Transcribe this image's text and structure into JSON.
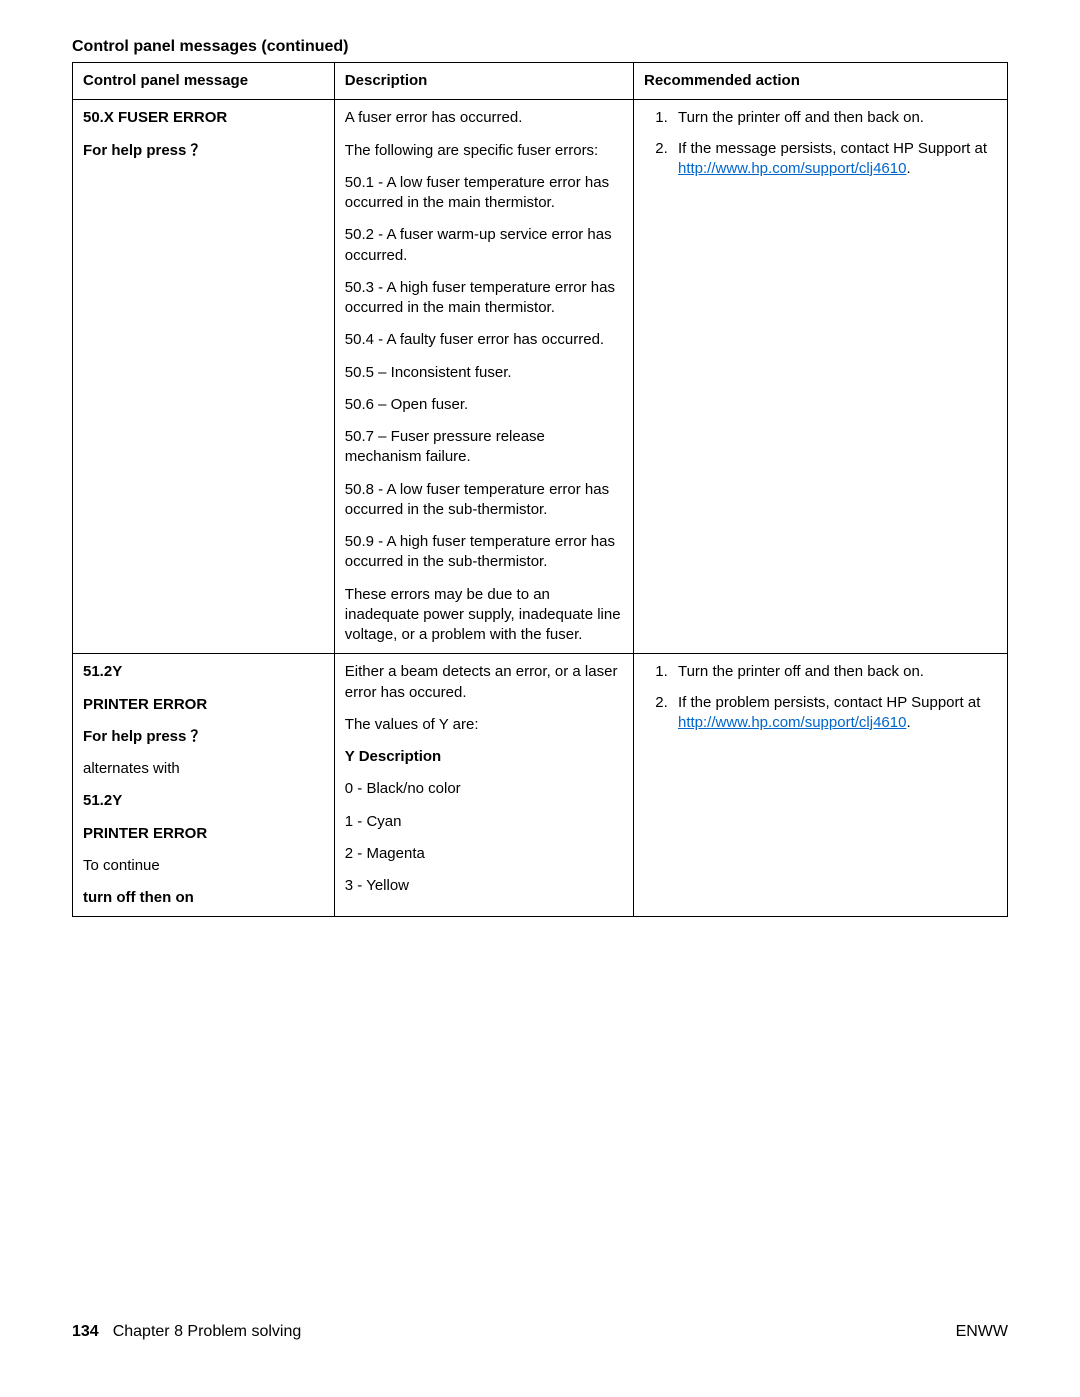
{
  "table_title": "Control panel messages (continued)",
  "headers": {
    "col1": "Control panel message",
    "col2": "Description",
    "col3": "Recommended action"
  },
  "row1": {
    "msg_line1": "50.X FUSER ERROR",
    "msg_line2": "For help press ？",
    "desc": {
      "p1": "A fuser error has occurred.",
      "p2": "The following are specific fuser errors:",
      "p3": "50.1 - A low fuser temperature error has occurred in the main thermistor.",
      "p4": "50.2 - A fuser warm-up service error has occurred.",
      "p5": "50.3 - A high fuser temperature error has occurred in the main thermistor.",
      "p6": "50.4 - A faulty fuser error has occurred.",
      "p7": "50.5 – Inconsistent fuser.",
      "p8": "50.6 – Open fuser.",
      "p9": "50.7 – Fuser pressure release mechanism failure.",
      "p10": "50.8 - A low fuser temperature error has occurred in the sub-thermistor.",
      "p11": "50.9 - A high fuser temperature error has occurred in the sub-thermistor.",
      "p12": "These errors may be due to an inadequate power supply, inadequate line voltage, or a problem with the fuser."
    },
    "action": {
      "a1": "Turn the printer off and then back on.",
      "a2_pre": "If the message persists, contact HP Support at ",
      "a2_link": "http://www.hp.com/support/clj4610",
      "a2_post": "."
    }
  },
  "row2": {
    "msg": {
      "l1": "51.2Y",
      "l2": "PRINTER ERROR",
      "l3": "For help press ？",
      "l4": "alternates with",
      "l5": "51.2Y",
      "l6": "PRINTER ERROR",
      "l7": "To continue",
      "l8": "turn off then on"
    },
    "desc": {
      "p1": "Either a beam detects an error, or a laser error has occured.",
      "p2": "The values of Y are:",
      "p3": "Y Description",
      "p4": "0 - Black/no color",
      "p5": "1 - Cyan",
      "p6": "2 - Magenta",
      "p7": "3 - Yellow"
    },
    "action": {
      "a1": "Turn the printer off and then back on.",
      "a2_pre": "If the problem persists, contact HP Support at ",
      "a2_link": "http://www.hp.com/support/clj4610",
      "a2_post": "."
    }
  },
  "footer": {
    "page_number": "134",
    "chapter": "Chapter 8  Problem solving",
    "right": "ENWW"
  },
  "link_href": "http://www.hp.com/support/clj4610"
}
